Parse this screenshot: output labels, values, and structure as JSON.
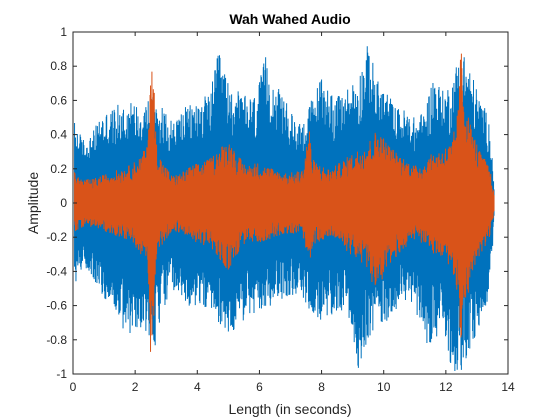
{
  "chart_data": {
    "type": "line",
    "title": "Wah Wahed Audio",
    "xlabel": "Length (in seconds)",
    "ylabel": "Amplitude",
    "xlim": [
      0,
      14
    ],
    "ylim": [
      -1,
      1
    ],
    "xticks": [
      0,
      2,
      4,
      6,
      8,
      10,
      12,
      14
    ],
    "yticks": [
      1,
      0.8,
      0.6,
      0.4,
      0.2,
      0,
      -0.2,
      -0.4,
      -0.6,
      -0.8,
      -1
    ],
    "grid": false,
    "legend": "none",
    "series": [
      {
        "color": "#0072BD",
        "x": [
          0.05,
          0.3,
          0.6,
          0.9,
          1.2,
          1.5,
          1.8,
          2.1,
          2.4,
          2.6,
          2.9,
          3.2,
          3.5,
          3.8,
          4.1,
          4.4,
          4.7,
          5.0,
          5.3,
          5.6,
          5.9,
          6.2,
          6.5,
          6.8,
          7.1,
          7.4,
          7.7,
          8.0,
          8.3,
          8.6,
          8.9,
          9.2,
          9.5,
          9.8,
          10.1,
          10.4,
          10.7,
          11.0,
          11.3,
          11.6,
          11.9,
          12.2,
          12.5,
          12.8,
          13.1,
          13.4,
          13.55
        ],
        "upper": [
          0.48,
          0.38,
          0.4,
          0.52,
          0.55,
          0.58,
          0.6,
          0.58,
          0.62,
          0.66,
          0.55,
          0.48,
          0.55,
          0.58,
          0.62,
          0.64,
          0.9,
          0.7,
          0.66,
          0.62,
          0.64,
          0.86,
          0.7,
          0.62,
          0.5,
          0.48,
          0.62,
          0.75,
          0.66,
          0.62,
          0.7,
          0.76,
          0.94,
          0.72,
          0.66,
          0.56,
          0.55,
          0.5,
          0.54,
          0.76,
          0.66,
          0.72,
          0.94,
          0.78,
          0.62,
          0.5,
          0.12
        ],
        "lower": [
          -0.48,
          -0.38,
          -0.42,
          -0.55,
          -0.58,
          -0.7,
          -0.82,
          -0.72,
          -0.76,
          -0.88,
          -0.62,
          -0.52,
          -0.58,
          -0.62,
          -0.6,
          -0.64,
          -0.7,
          -0.78,
          -0.72,
          -0.68,
          -0.66,
          -0.65,
          -0.56,
          -0.56,
          -0.54,
          -0.58,
          -0.64,
          -0.72,
          -0.68,
          -0.62,
          -0.7,
          -0.98,
          -0.8,
          -0.72,
          -0.7,
          -0.62,
          -0.58,
          -0.6,
          -0.82,
          -0.82,
          -0.78,
          -0.98,
          -1.0,
          -0.88,
          -0.72,
          -0.56,
          -0.12
        ]
      },
      {
        "color": "#D95319",
        "x": [
          0.05,
          0.3,
          0.6,
          0.9,
          1.2,
          1.5,
          1.8,
          2.1,
          2.4,
          2.5,
          2.6,
          2.7,
          2.9,
          3.2,
          3.5,
          3.8,
          4.1,
          4.4,
          4.7,
          5.0,
          5.3,
          5.6,
          5.9,
          6.2,
          6.5,
          6.8,
          7.1,
          7.4,
          7.6,
          7.7,
          8.0,
          8.3,
          8.6,
          8.9,
          9.2,
          9.5,
          9.8,
          10.1,
          10.4,
          10.7,
          11.0,
          11.3,
          11.6,
          11.9,
          12.2,
          12.4,
          12.5,
          12.6,
          12.8,
          13.1,
          13.4,
          13.55
        ],
        "upper": [
          0.18,
          0.14,
          0.14,
          0.16,
          0.18,
          0.2,
          0.22,
          0.26,
          0.34,
          0.88,
          0.72,
          0.32,
          0.24,
          0.16,
          0.18,
          0.22,
          0.24,
          0.26,
          0.32,
          0.38,
          0.28,
          0.22,
          0.24,
          0.22,
          0.2,
          0.18,
          0.18,
          0.2,
          0.46,
          0.26,
          0.22,
          0.2,
          0.24,
          0.28,
          0.32,
          0.36,
          0.44,
          0.36,
          0.3,
          0.26,
          0.22,
          0.24,
          0.3,
          0.32,
          0.36,
          0.56,
          0.98,
          0.62,
          0.46,
          0.3,
          0.22,
          0.06
        ],
        "lower": [
          -0.18,
          -0.14,
          -0.14,
          -0.16,
          -0.18,
          -0.2,
          -0.22,
          -0.28,
          -0.36,
          -0.9,
          -0.7,
          -0.32,
          -0.24,
          -0.16,
          -0.18,
          -0.22,
          -0.24,
          -0.26,
          -0.34,
          -0.4,
          -0.3,
          -0.22,
          -0.24,
          -0.22,
          -0.2,
          -0.18,
          -0.18,
          -0.2,
          -0.36,
          -0.26,
          -0.22,
          -0.2,
          -0.24,
          -0.3,
          -0.34,
          -0.4,
          -0.56,
          -0.4,
          -0.32,
          -0.26,
          -0.22,
          -0.24,
          -0.3,
          -0.34,
          -0.38,
          -0.58,
          -0.88,
          -0.64,
          -0.46,
          -0.3,
          -0.22,
          -0.06
        ]
      }
    ]
  }
}
